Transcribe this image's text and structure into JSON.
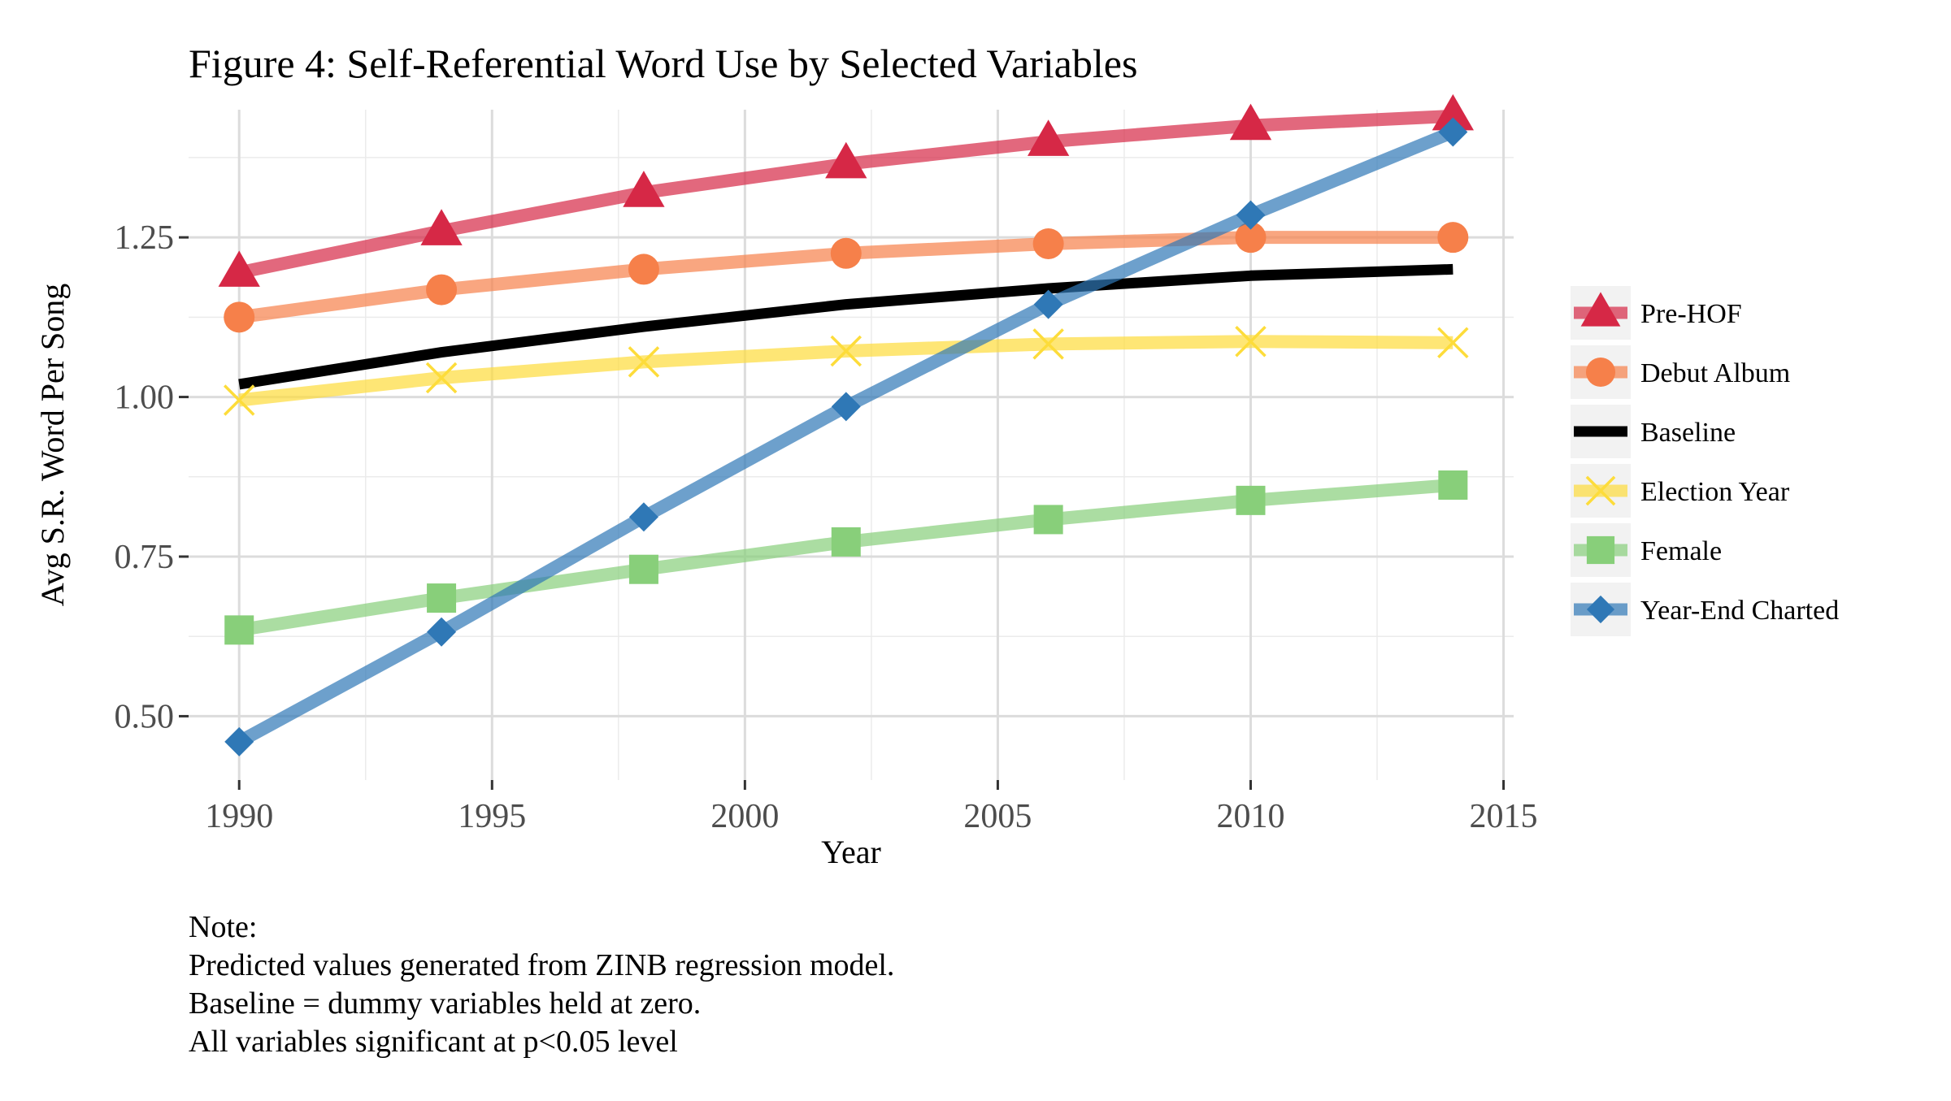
{
  "chart_data": {
    "type": "line",
    "title": "Figure 4: Self-Referential Word Use by Selected Variables",
    "xlabel": "Year",
    "ylabel": "Avg S.R. Word Per Song",
    "x": [
      1990,
      1994,
      1998,
      2002,
      2006,
      2010,
      2014
    ],
    "xlim": [
      1989,
      2015.2
    ],
    "ylim": [
      0.4,
      1.45
    ],
    "xticks": [
      1990,
      1995,
      2000,
      2005,
      2010,
      2015
    ],
    "xtick_labels": [
      "1990",
      "1995",
      "2000",
      "2005",
      "2010",
      "2015"
    ],
    "yticks": [
      0.5,
      0.75,
      1.0,
      1.25
    ],
    "ytick_labels": [
      "0.50",
      "0.75",
      "1.00",
      "1.25"
    ],
    "grid": true,
    "legend_position": "right",
    "series": [
      {
        "name": "Pre-HOF",
        "color": "#d62846",
        "marker": "triangle",
        "values": [
          1.195,
          1.26,
          1.32,
          1.365,
          1.4,
          1.425,
          1.44
        ]
      },
      {
        "name": "Debut Album",
        "color": "#f6804a",
        "marker": "circle",
        "values": [
          1.125,
          1.168,
          1.2,
          1.225,
          1.24,
          1.25,
          1.25
        ]
      },
      {
        "name": "Baseline",
        "color": "#000000",
        "marker": "none",
        "values": [
          1.02,
          1.07,
          1.11,
          1.145,
          1.17,
          1.19,
          1.2
        ]
      },
      {
        "name": "Election Year",
        "color": "#fddc3a",
        "marker": "x",
        "values": [
          0.995,
          1.03,
          1.055,
          1.072,
          1.083,
          1.087,
          1.085
        ]
      },
      {
        "name": "Female",
        "color": "#88cf7a",
        "marker": "square",
        "values": [
          0.635,
          0.685,
          0.73,
          0.773,
          0.808,
          0.838,
          0.862
        ]
      },
      {
        "name": "Year-End Charted",
        "color": "#2f78b6",
        "marker": "diamond",
        "values": [
          0.46,
          0.632,
          0.812,
          0.985,
          1.145,
          1.285,
          1.415
        ]
      }
    ]
  },
  "note": {
    "lines": [
      "Note:",
      "Predicted values generated from ZINB regression model.",
      "Baseline = dummy variables held at zero.",
      "All variables significant at p<0.05 level"
    ]
  }
}
